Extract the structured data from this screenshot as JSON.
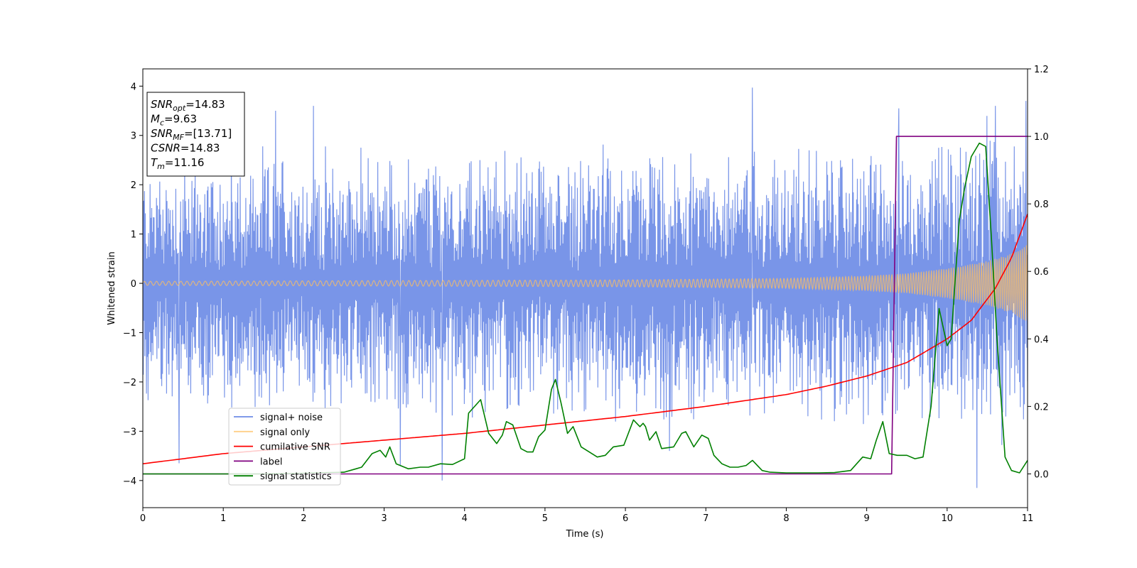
{
  "chart_data": {
    "type": "line",
    "title": "",
    "xlabel": "Time (s)",
    "ylabel": "Whitened strain",
    "xlim": [
      0,
      11
    ],
    "ylim": [
      -4.55,
      4.35
    ],
    "y2lim": [
      -0.1,
      1.2
    ],
    "xticks": [
      "0",
      "1",
      "2",
      "3",
      "4",
      "5",
      "6",
      "7",
      "8",
      "9",
      "10",
      "11"
    ],
    "yticks": [
      "4",
      "3",
      "2",
      "1",
      "0",
      "−1",
      "−2",
      "−3",
      "−4"
    ],
    "yticks_values": [
      4,
      3,
      2,
      1,
      0,
      -1,
      -2,
      -3,
      -4
    ],
    "y2ticks": [
      "1.2",
      "1.0",
      "0.8",
      "0.6",
      "0.4",
      "0.2",
      "0.0"
    ],
    "y2ticks_values": [
      1.2,
      1.0,
      0.8,
      0.6,
      0.4,
      0.2,
      0.0
    ],
    "grid": false,
    "legend_position": "lower-left",
    "annotation": {
      "lines": [
        {
          "main": "SNR",
          "sub": "opt",
          "value": "=14.83"
        },
        {
          "main": "M",
          "sub": "c",
          "value": "=9.63"
        },
        {
          "main": "SNR",
          "sub": "MF",
          "value": "=[13.71]"
        },
        {
          "main": "CSNR",
          "sub": "",
          "value": "=14.83"
        },
        {
          "main": "T",
          "sub": "m",
          "value": "=11.16"
        }
      ]
    },
    "series": [
      {
        "name": "signal+ noise",
        "color": "#6e8ce6",
        "axis": "left",
        "kind": "noise",
        "envelope_x": [
          0,
          2,
          4,
          6,
          8,
          9,
          10,
          10.5,
          11
        ],
        "envelope_upper": [
          2.7,
          2.9,
          2.9,
          3.0,
          3.0,
          3.1,
          3.2,
          3.5,
          3.6
        ],
        "envelope_lower": [
          -2.7,
          -2.8,
          -2.9,
          -2.9,
          -3.0,
          -3.1,
          -3.2,
          -3.4,
          -3.5
        ],
        "spikes": [
          {
            "x": 0.45,
            "y": -3.65
          },
          {
            "x": 1.1,
            "y": 3.3
          },
          {
            "x": 1.65,
            "y": 3.5
          },
          {
            "x": 2.12,
            "y": 3.6
          },
          {
            "x": 3.72,
            "y": -4.0
          },
          {
            "x": 7.58,
            "y": 3.97
          },
          {
            "x": 9.4,
            "y": 3.55
          },
          {
            "x": 10.37,
            "y": -4.15
          },
          {
            "x": 10.6,
            "y": 3.6
          },
          {
            "x": 10.98,
            "y": 3.7
          },
          {
            "x": 3.2,
            "y": -3.7
          },
          {
            "x": 6.55,
            "y": -3.4
          }
        ]
      },
      {
        "name": "signal only",
        "color": "#ffbf60",
        "axis": "left",
        "kind": "chirp",
        "amplitude_x": [
          0,
          2,
          4,
          6,
          8,
          9,
          9.5,
          10,
          10.5,
          10.8,
          11
        ],
        "amplitude": [
          0.04,
          0.05,
          0.06,
          0.07,
          0.1,
          0.15,
          0.2,
          0.3,
          0.45,
          0.6,
          0.8
        ]
      },
      {
        "name": "cumilative SNR",
        "color": "#ff0000",
        "axis": "right",
        "x": [
          0,
          1,
          2,
          3,
          4,
          5,
          6,
          7,
          8,
          8.5,
          9,
          9.5,
          10,
          10.3,
          10.6,
          10.8,
          11
        ],
        "y": [
          0.03,
          0.06,
          0.08,
          0.1,
          0.12,
          0.145,
          0.17,
          0.2,
          0.235,
          0.26,
          0.29,
          0.33,
          0.4,
          0.455,
          0.55,
          0.64,
          0.77
        ]
      },
      {
        "name": "label",
        "color": "#800080",
        "axis": "right",
        "x": [
          0,
          9.31,
          9.37,
          11
        ],
        "y": [
          0.0,
          0.0,
          1.0,
          1.0
        ]
      },
      {
        "name": "signal statistics",
        "color": "#008000",
        "axis": "right",
        "x": [
          0,
          0.5,
          1.0,
          1.5,
          2.0,
          2.5,
          2.65,
          2.72,
          2.85,
          2.95,
          3.02,
          3.07,
          3.15,
          3.3,
          3.45,
          3.55,
          3.7,
          3.85,
          4.0,
          4.05,
          4.2,
          4.3,
          4.4,
          4.47,
          4.52,
          4.6,
          4.7,
          4.78,
          4.85,
          4.92,
          5.0,
          5.08,
          5.13,
          5.2,
          5.28,
          5.35,
          5.45,
          5.55,
          5.65,
          5.75,
          5.85,
          5.98,
          6.1,
          6.18,
          6.22,
          6.25,
          6.3,
          6.38,
          6.45,
          6.6,
          6.7,
          6.75,
          6.85,
          6.95,
          7.03,
          7.1,
          7.2,
          7.3,
          7.4,
          7.5,
          7.58,
          7.7,
          7.8,
          8.0,
          8.2,
          8.4,
          8.6,
          8.8,
          8.95,
          9.05,
          9.12,
          9.2,
          9.28,
          9.38,
          9.5,
          9.6,
          9.7,
          9.8,
          9.9,
          10.0,
          10.05,
          10.15,
          10.22,
          10.3,
          10.4,
          10.48,
          10.55,
          10.62,
          10.72,
          10.8,
          10.9,
          11.0
        ],
        "y": [
          0.0,
          0.0,
          0.0,
          0.0,
          0.002,
          0.005,
          0.015,
          0.02,
          0.06,
          0.07,
          0.05,
          0.08,
          0.03,
          0.015,
          0.02,
          0.02,
          0.03,
          0.028,
          0.045,
          0.18,
          0.22,
          0.12,
          0.09,
          0.115,
          0.155,
          0.145,
          0.075,
          0.065,
          0.065,
          0.11,
          0.13,
          0.25,
          0.28,
          0.21,
          0.12,
          0.14,
          0.08,
          0.065,
          0.05,
          0.055,
          0.08,
          0.085,
          0.16,
          0.14,
          0.15,
          0.14,
          0.1,
          0.125,
          0.075,
          0.08,
          0.12,
          0.125,
          0.08,
          0.115,
          0.105,
          0.055,
          0.03,
          0.02,
          0.02,
          0.025,
          0.04,
          0.01,
          0.005,
          0.003,
          0.003,
          0.003,
          0.004,
          0.01,
          0.05,
          0.045,
          0.1,
          0.155,
          0.06,
          0.055,
          0.055,
          0.045,
          0.05,
          0.2,
          0.49,
          0.38,
          0.4,
          0.75,
          0.85,
          0.94,
          0.98,
          0.97,
          0.7,
          0.4,
          0.05,
          0.01,
          0.003,
          0.04
        ]
      }
    ]
  }
}
